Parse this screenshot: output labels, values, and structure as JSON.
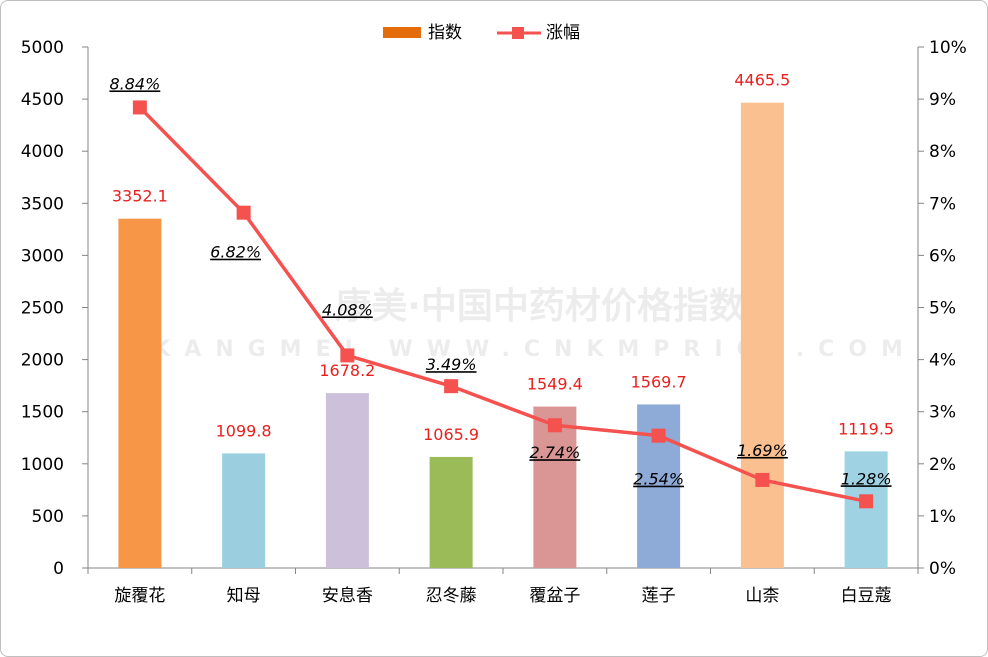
{
  "chart_data": {
    "type": "bar",
    "categories": [
      "旋覆花",
      "知母",
      "安息香",
      "忍冬藤",
      "覆盆子",
      "莲子",
      "山柰",
      "白豆蔻"
    ],
    "series": [
      {
        "name": "指数",
        "type": "bar",
        "axis": "left",
        "values": [
          3352.1,
          1099.8,
          1678.2,
          1065.9,
          1549.4,
          1569.7,
          4465.5,
          1119.5
        ],
        "labels": [
          "3352.1",
          "1099.8",
          "1678.2",
          "1065.9",
          "1549.4",
          "1569.7",
          "4465.5",
          "1119.5"
        ],
        "colors": [
          "#f79646",
          "#9bcfdf",
          "#ccc0da",
          "#9bbb59",
          "#d99694",
          "#8eaad6",
          "#fac090",
          "#9fd3e3"
        ],
        "legend_color": "#e46c0a"
      },
      {
        "name": "涨幅",
        "type": "line",
        "axis": "right",
        "values": [
          8.84,
          6.82,
          4.08,
          3.49,
          2.74,
          2.54,
          1.69,
          1.28
        ],
        "labels": [
          "8.84%",
          "6.82%",
          "4.08%",
          "3.49%",
          "2.74%",
          "2.54%",
          "1.69%",
          "1.28%"
        ],
        "color": "#f4514f"
      }
    ],
    "y_left": {
      "range": [
        0,
        5000
      ],
      "ticks": [
        "0",
        "500",
        "1000",
        "1500",
        "2000",
        "2500",
        "3000",
        "3500",
        "4000",
        "4500",
        "5000"
      ]
    },
    "y_right": {
      "range": [
        0,
        10
      ],
      "ticks": [
        "0%",
        "1%",
        "2%",
        "3%",
        "4%",
        "5%",
        "6%",
        "7%",
        "8%",
        "9%",
        "10%"
      ]
    },
    "legend_position": "top-center",
    "grid": false
  },
  "watermark": {
    "line1": "康美·中国中药材价格指数",
    "line2": "KANGMEI WWW.CNKMPRICE.COM"
  }
}
